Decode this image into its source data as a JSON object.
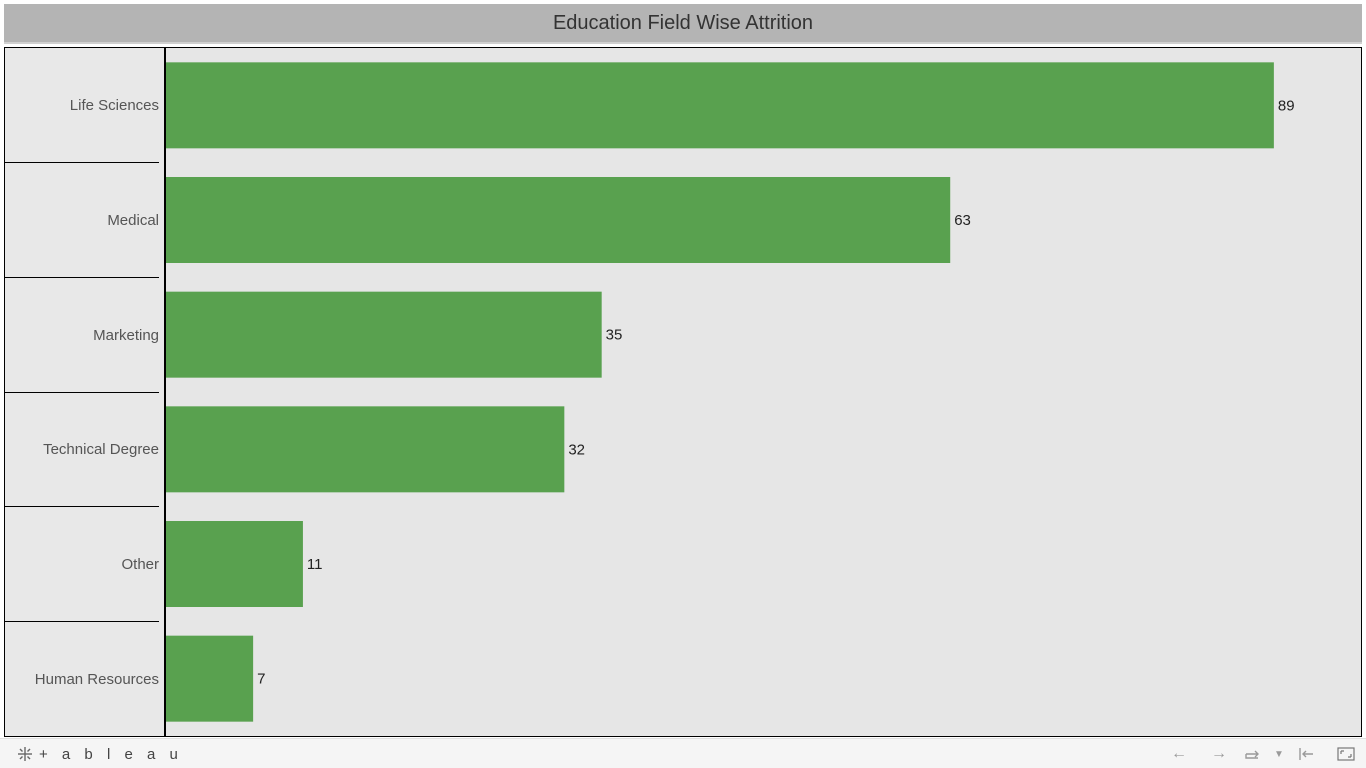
{
  "title": "Education Field Wise Attrition",
  "chart_data": {
    "type": "bar",
    "orientation": "horizontal",
    "categories": [
      "Life Sciences",
      "Medical",
      "Marketing",
      "Technical Degree",
      "Other",
      "Human Resources"
    ],
    "values": [
      89,
      63,
      35,
      32,
      11,
      7
    ],
    "title": "Education Field Wise Attrition",
    "xlabel": "",
    "ylabel": "",
    "xlim": [
      0,
      96
    ],
    "grid": false,
    "bar_color": "#59a14f",
    "data_labels": [
      "89",
      "63",
      "35",
      "32",
      "11",
      "7"
    ]
  },
  "footer": {
    "logo_text": "+ a b l e a u",
    "icons": [
      "back-arrow-icon",
      "forward-arrow-icon",
      "revert-icon",
      "dropdown-icon",
      "first-page-icon",
      "fullscreen-icon"
    ]
  },
  "colors": {
    "title_bg": "#b4b4b4",
    "plot_bg": "#e6e6e6",
    "bar": "#59a14f"
  }
}
